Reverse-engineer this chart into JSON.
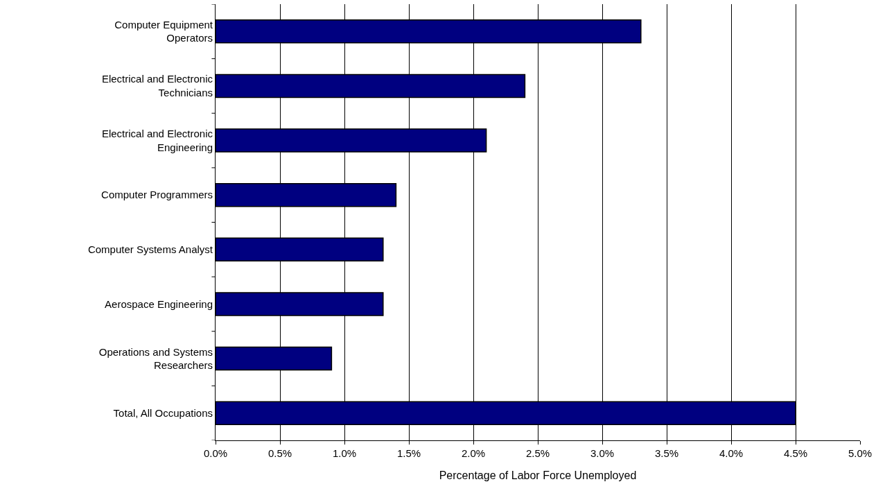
{
  "chart_data": {
    "type": "bar",
    "orientation": "horizontal",
    "xlabel": "Percentage of Labor Force Unemployed",
    "categories": [
      "Computer Equipment Operators",
      "Electrical and Electronic Technicians",
      "Electrical and Electronic Engineering",
      "Computer Programmers",
      "Computer Systems Analyst",
      "Aerospace Engineering",
      "Operations and Systems Researchers",
      "Total, All Occupations"
    ],
    "values": [
      3.3,
      2.4,
      2.1,
      1.4,
      1.3,
      1.3,
      0.9,
      4.5
    ],
    "color": "#000080",
    "xlim": [
      0,
      5
    ],
    "xticks": [
      {
        "value": 0,
        "label": "0.0%"
      },
      {
        "value": 0.5,
        "label": "0.5%"
      },
      {
        "value": 1,
        "label": "1.0%"
      },
      {
        "value": 1.5,
        "label": "1.5%"
      },
      {
        "value": 2,
        "label": "2.0%"
      },
      {
        "value": 2.5,
        "label": "2.5%"
      },
      {
        "value": 3,
        "label": "3.0%"
      },
      {
        "value": 3.5,
        "label": "3.5%"
      },
      {
        "value": 4,
        "label": "4.0%"
      },
      {
        "value": 4.5,
        "label": "4.5%"
      },
      {
        "value": 5,
        "label": "5.0%"
      }
    ],
    "grid": "x",
    "legend": false
  }
}
